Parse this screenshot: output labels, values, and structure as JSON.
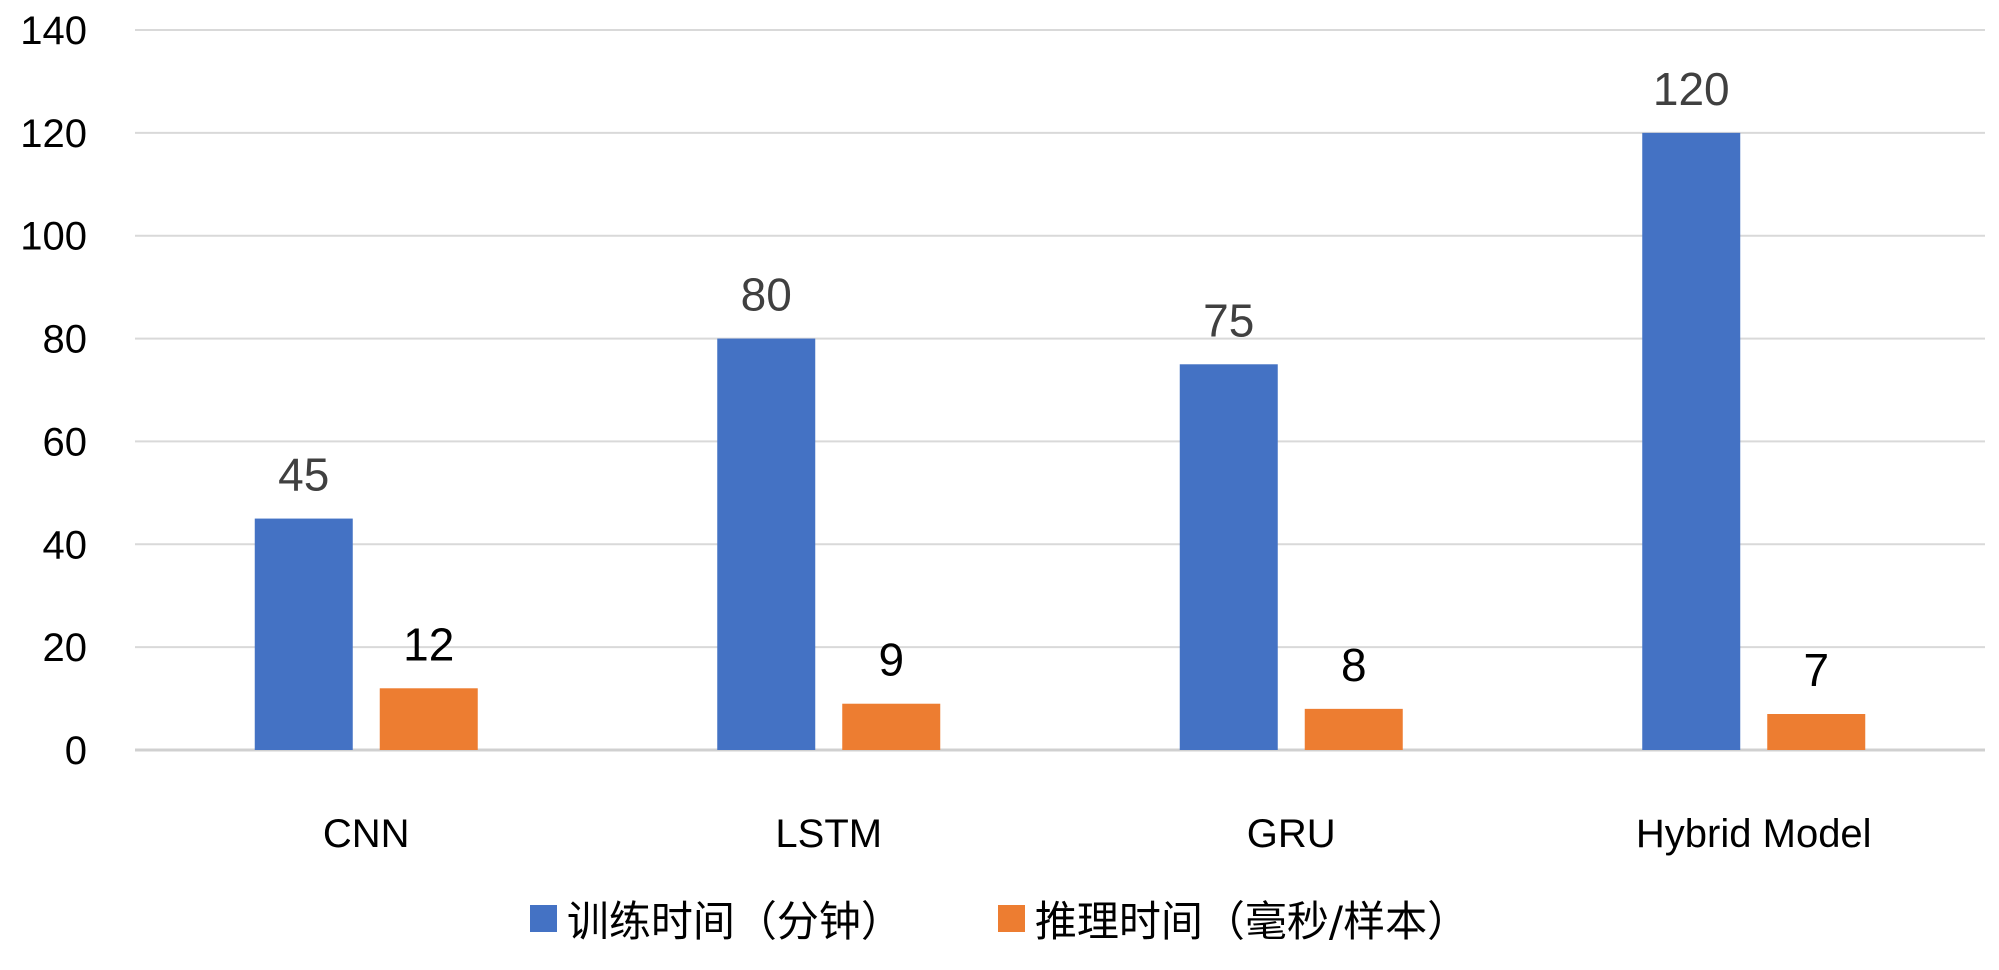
{
  "chart_data": {
    "type": "bar",
    "title": "",
    "xlabel": "",
    "ylabel": "",
    "categories": [
      "CNN",
      "LSTM",
      "GRU",
      "Hybrid Model"
    ],
    "series": [
      {
        "name": "训练时间（分钟）",
        "values": [
          45,
          80,
          75,
          120
        ],
        "color": "#4472C4"
      },
      {
        "name": "推理时间（毫秒/样本）",
        "values": [
          12,
          9,
          8,
          7
        ],
        "color": "#ED7D31"
      }
    ],
    "ylim": [
      0,
      140
    ],
    "yticks": [
      0,
      20,
      40,
      60,
      80,
      100,
      120,
      140
    ],
    "grid": true,
    "legend_position": "bottom",
    "data_labels": true,
    "colors": {
      "gridline": "#D9D9D9",
      "axis_text": "#000000",
      "data_label_series_1": "#404040",
      "data_label_series_2": "#000000"
    }
  }
}
